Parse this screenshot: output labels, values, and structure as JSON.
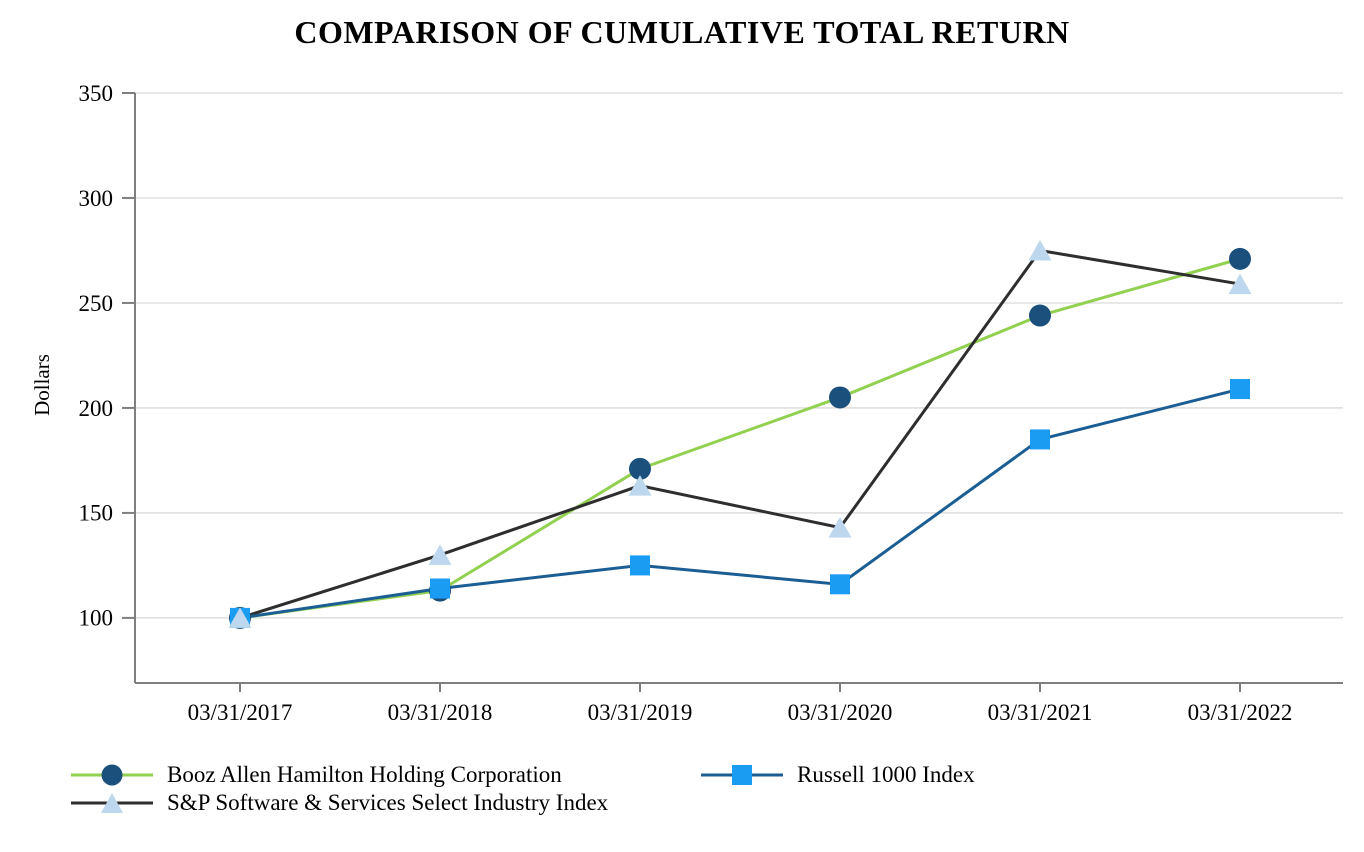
{
  "chart_data": {
    "type": "line",
    "title": "COMPARISON OF CUMULATIVE TOTAL RETURN",
    "ylabel": "Dollars",
    "xlabel": "",
    "x_labels": [
      "03/31/2017",
      "03/31/2018",
      "03/31/2019",
      "03/31/2020",
      "03/31/2021",
      "03/31/2022"
    ],
    "y_ticks": [
      100,
      150,
      200,
      250,
      300,
      350
    ],
    "ylim": [
      69,
      350
    ],
    "grid": "horizontal-only",
    "legend_position": "bottom",
    "series": [
      {
        "name": "Booz Allen Hamilton Holding Corporation",
        "marker": "circle",
        "line_color": "#92d050",
        "marker_color": "#1b4f7c",
        "values": [
          100,
          113,
          171,
          205,
          244,
          271
        ]
      },
      {
        "name": "Russell 1000 Index",
        "marker": "square",
        "line_color": "#1b5e94",
        "marker_color": "#1a9cf2",
        "values": [
          100,
          114,
          125,
          116,
          185,
          209
        ]
      },
      {
        "name": "S&P Software & Services Select Industry Index",
        "marker": "triangle",
        "line_color": "#2e2e2e",
        "marker_color": "#bdd7ee",
        "values": [
          100,
          130,
          163,
          143,
          275,
          259
        ]
      }
    ],
    "colors": {
      "axis": "#7f7f7f",
      "gridline": "#d9d9d9",
      "text": "#000000",
      "background": "#ffffff"
    }
  }
}
